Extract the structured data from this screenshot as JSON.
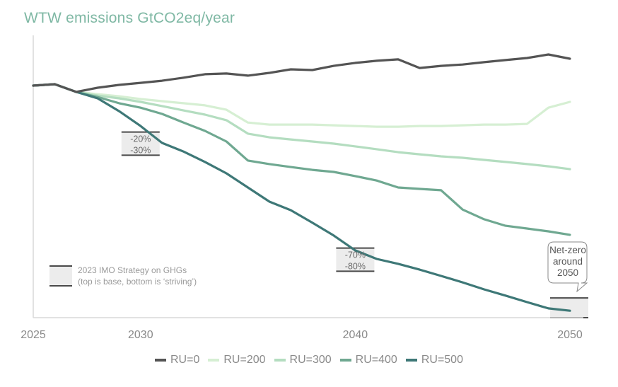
{
  "chart_data": {
    "type": "line",
    "title": "WTW emissions GtCO2eq/year",
    "xlabel": "",
    "ylabel": "",
    "x_ticks": [
      "2025",
      "2030",
      "2040",
      "2050"
    ],
    "x_tick_values": [
      2025,
      2030,
      2040,
      2050
    ],
    "xlim": [
      2025,
      2050
    ],
    "ylim": [
      0,
      122
    ],
    "y_note": "indexed, 2025 = 100 (no y-axis tick labels shown)",
    "grid": false,
    "legend_position": "bottom-center",
    "x": [
      2025,
      2026,
      2027,
      2028,
      2029,
      2030,
      2031,
      2032,
      2033,
      2034,
      2035,
      2036,
      2037,
      2038,
      2039,
      2040,
      2041,
      2042,
      2043,
      2044,
      2045,
      2046,
      2047,
      2048,
      2049,
      2050
    ],
    "series": [
      {
        "name": "RU=0",
        "color": "#545454",
        "values": [
          100,
          100.6,
          97.3,
          99.1,
          100.3,
          101.2,
          102.1,
          103.4,
          104.9,
          105.2,
          104.3,
          105.5,
          107.0,
          106.7,
          108.5,
          109.8,
          110.7,
          111.3,
          107.6,
          108.5,
          109.1,
          110.1,
          111.0,
          111.9,
          113.4,
          111.6
        ]
      },
      {
        "name": "RU=200",
        "color": "#d6efd3",
        "values": [
          100,
          100.6,
          97.3,
          96.3,
          95.4,
          94.2,
          93.3,
          92.4,
          91.5,
          89.6,
          84.1,
          83.2,
          83.2,
          83.2,
          82.9,
          82.6,
          82.3,
          82.3,
          82.6,
          82.6,
          82.9,
          83.2,
          83.2,
          83.5,
          90.5,
          93.0
        ]
      },
      {
        "name": "RU=300",
        "color": "#b4ddc0",
        "values": [
          100,
          100.6,
          97.3,
          95.7,
          94.5,
          93.0,
          91.2,
          89.3,
          87.5,
          85.1,
          79.3,
          77.7,
          76.8,
          75.9,
          75.0,
          73.8,
          72.6,
          71.3,
          70.4,
          69.5,
          68.9,
          68.0,
          67.1,
          66.2,
          65.2,
          64.0
        ]
      },
      {
        "name": "RU=400",
        "color": "#6fa891",
        "values": [
          100,
          100.6,
          97.3,
          95.1,
          92.4,
          90.5,
          87.8,
          84.1,
          80.5,
          75.9,
          67.7,
          66.2,
          64.9,
          63.7,
          62.8,
          61.0,
          59.1,
          56.1,
          55.5,
          54.9,
          46.6,
          42.4,
          39.6,
          38.4,
          37.2,
          35.7
        ]
      },
      {
        "name": "RU=500",
        "color": "#3e7877",
        "values": [
          100,
          100.6,
          97.3,
          94.5,
          89.0,
          82.6,
          75.3,
          71.6,
          67.1,
          62.2,
          56.1,
          50.0,
          46.3,
          40.9,
          35.4,
          29.0,
          25.3,
          23.2,
          20.7,
          18.0,
          15.2,
          12.2,
          9.5,
          6.7,
          4.0,
          3.0
        ]
      }
    ],
    "target_bands": [
      {
        "year": 2030,
        "top_label": "-20%",
        "bottom_label": "-30%",
        "top_value": 80,
        "bottom_value": 70
      },
      {
        "year": 2040,
        "top_label": "-70%",
        "bottom_label": "-80%",
        "top_value": 30,
        "bottom_value": 20
      },
      {
        "year": 2050,
        "top_label": "",
        "bottom_label": "",
        "top_value": 8.5,
        "bottom_value": 0
      }
    ],
    "band_legend": {
      "line1": "2023 IMO Strategy on GHGs",
      "line2": "(top is base, bottom is ‘striving’)"
    },
    "callout": {
      "lines": [
        "Net-zero",
        "around",
        "2050"
      ]
    }
  },
  "colors": {
    "title": "#7fb8a4",
    "axis": "#d9d9d9",
    "band_fill": "#ececec",
    "band_edge": "#4a4a4a"
  }
}
